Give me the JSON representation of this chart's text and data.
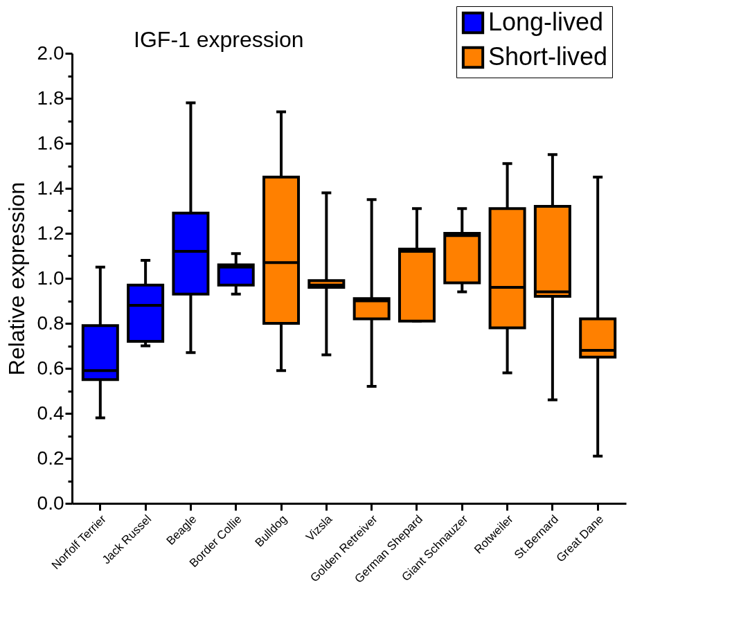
{
  "chart_data": {
    "type": "box",
    "title": "IGF-1 expression",
    "ylabel": "Relative expression",
    "categories": [
      "Norfolf Terrier",
      "Jack Russel",
      "Beagle",
      "Border Collie",
      "Bulldog",
      "Vizsla",
      "Golden Retreiver",
      "German Shepard",
      "Giant Schnauzer",
      "Rotweiler",
      "St.Bernard",
      "Great Dane"
    ],
    "ylim": [
      0,
      2
    ],
    "yticks": [
      {
        "value": 0,
        "label": "0.0"
      },
      {
        "value": 0.1,
        "label": null
      },
      0.2,
      {
        "value": 0.3,
        "label": null
      },
      0.4,
      {
        "value": 0.5,
        "label": null
      },
      0.6,
      {
        "value": 0.7,
        "label": null
      },
      0.8,
      {
        "value": 0.9,
        "label": null
      },
      {
        "value": 1,
        "label": "1.0"
      },
      {
        "value": 1.1,
        "label": null
      },
      1.2,
      {
        "value": 1.3,
        "label": null
      },
      1.4,
      {
        "value": 1.5,
        "label": null
      },
      1.6,
      {
        "value": 1.7,
        "label": null
      },
      1.8,
      {
        "value": 1.9,
        "label": null
      },
      {
        "value": 2,
        "label": "2.0"
      }
    ],
    "grid": false,
    "legend": "top right",
    "series": [
      {
        "name": "Long-lived",
        "color": "#0000ff",
        "boxes": [
          {
            "low": 0.38,
            "q1": 0.55,
            "median": 0.59,
            "q3": 0.79,
            "high": 1.05
          },
          {
            "low": 0.7,
            "q1": 0.72,
            "median": 0.88,
            "q3": 0.97,
            "high": 1.08
          },
          {
            "low": 0.67,
            "q1": 0.93,
            "median": 1.12,
            "q3": 1.29,
            "high": 1.78
          },
          {
            "low": 0.93,
            "q1": 0.97,
            "median": 1.05,
            "q3": 1.06,
            "high": 1.11
          },
          null,
          null,
          null,
          null,
          null,
          null,
          null,
          null
        ]
      },
      {
        "name": "Short-lived",
        "color": "#ff8000",
        "boxes": [
          null,
          null,
          null,
          null,
          {
            "low": 0.59,
            "q1": 0.8,
            "median": 1.07,
            "q3": 1.45,
            "high": 1.74
          },
          {
            "low": 0.66,
            "q1": 0.96,
            "median": 0.97,
            "q3": 0.99,
            "high": 1.38
          },
          {
            "low": 0.52,
            "q1": 0.82,
            "median": 0.9,
            "q3": 0.91,
            "high": 1.35
          },
          {
            "low": 0.81,
            "q1": 0.81,
            "median": 1.12,
            "q3": 1.13,
            "high": 1.31
          },
          {
            "low": 0.94,
            "q1": 0.98,
            "median": 1.19,
            "q3": 1.2,
            "high": 1.31
          },
          {
            "low": 0.58,
            "q1": 0.78,
            "median": 0.96,
            "q3": 1.31,
            "high": 1.51
          },
          {
            "low": 0.46,
            "q1": 0.92,
            "median": 0.94,
            "q3": 1.32,
            "high": 1.55
          },
          {
            "low": 0.21,
            "q1": 0.65,
            "median": 0.68,
            "q3": 0.82,
            "high": 1.45
          }
        ]
      }
    ]
  }
}
